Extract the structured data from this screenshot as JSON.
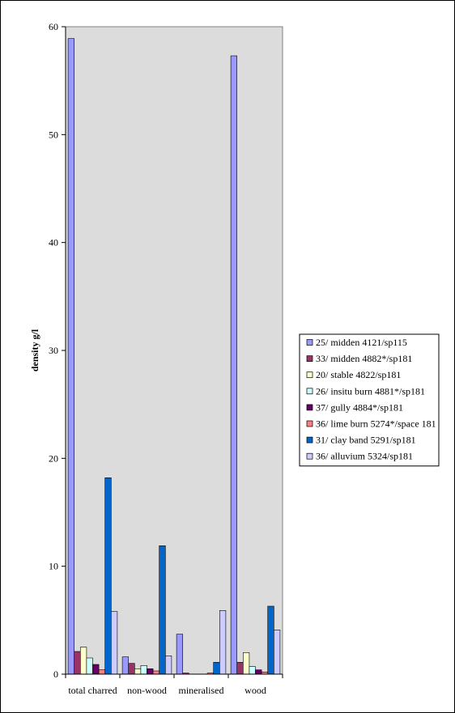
{
  "chart_data": {
    "type": "bar",
    "title": "",
    "xlabel": "",
    "ylabel": "density g/l",
    "ylim": [
      0,
      60
    ],
    "yticks": [
      0,
      10,
      20,
      30,
      40,
      50,
      60
    ],
    "grid": false,
    "legend_position": "right",
    "categories": [
      "total charred",
      "non-wood",
      "mineralised",
      "wood"
    ],
    "series": [
      {
        "name": "25/ midden 4121/sp115",
        "color": "#9999ff",
        "values": [
          58.9,
          1.6,
          3.7,
          57.3
        ]
      },
      {
        "name": "33/ midden 4882*/sp181",
        "color": "#993366",
        "values": [
          2.1,
          1.0,
          0.1,
          1.1
        ]
      },
      {
        "name": "20/ stable 4822/sp181",
        "color": "#ffffcc",
        "values": [
          2.5,
          0.5,
          0.0,
          2.0
        ]
      },
      {
        "name": "26/ insitu burn 4881*/sp181",
        "color": "#ccffff",
        "values": [
          1.5,
          0.8,
          0.0,
          0.7
        ]
      },
      {
        "name": "37/ gully 4884*/sp181",
        "color": "#660066",
        "values": [
          0.9,
          0.5,
          0.0,
          0.4
        ]
      },
      {
        "name": "36/ lime burn 5274*/space 181",
        "color": "#ff8080",
        "values": [
          0.4,
          0.3,
          0.1,
          0.2
        ]
      },
      {
        "name": "31/ clay band 5291/sp181",
        "color": "#0066cc",
        "values": [
          18.2,
          11.9,
          1.1,
          6.3
        ]
      },
      {
        "name": "36/ alluvium 5324/sp181",
        "color": "#ccccff",
        "values": [
          5.8,
          1.7,
          5.9,
          4.1
        ]
      }
    ]
  }
}
